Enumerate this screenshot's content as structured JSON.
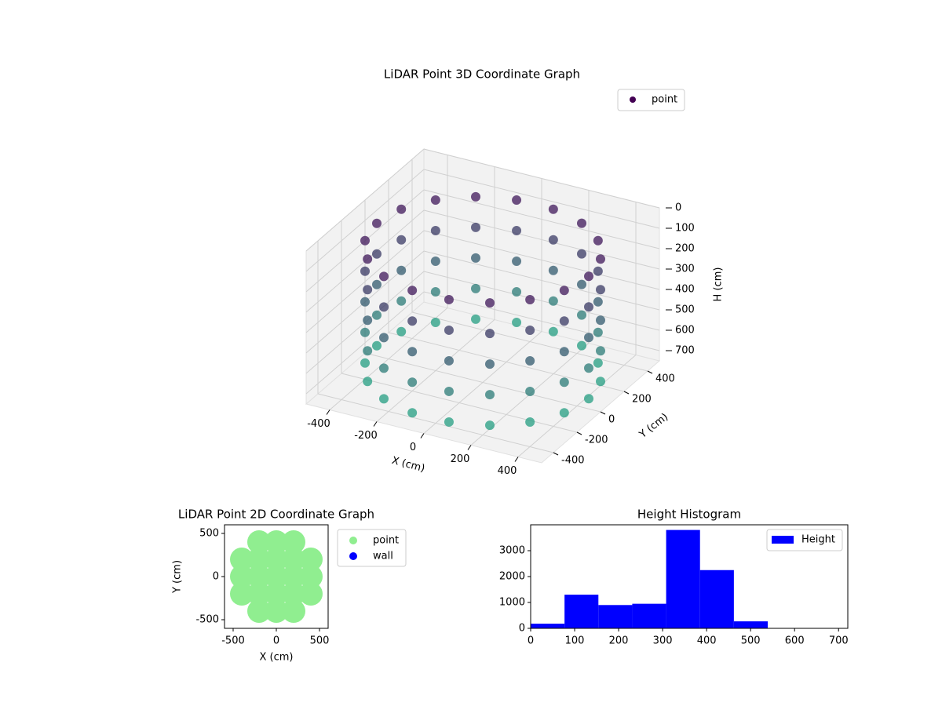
{
  "chart_data": [
    {
      "type": "scatter3d",
      "title": "LiDAR Point 3D Coordinate Graph",
      "xlabel": "X (cm)",
      "ylabel": "Y (cm)",
      "zlabel": "H (cm)",
      "xlim": [
        -500,
        500
      ],
      "ylim": [
        -500,
        500
      ],
      "zlim": [
        0,
        750
      ],
      "zinverted": true,
      "xticks": [
        -400,
        -200,
        0,
        200,
        400
      ],
      "yticks": [
        -400,
        -200,
        0,
        200,
        400
      ],
      "zticks": [
        0,
        100,
        200,
        300,
        400,
        500,
        600,
        700
      ],
      "legend": "upper right",
      "color_range": [
        "#440154",
        "#22a884"
      ],
      "series": [
        {
          "name": "point",
          "color": "#440154",
          "x": [
            450,
            423,
            345,
            225,
            78,
            -78,
            -225,
            -345,
            -423,
            -450,
            -423,
            -345,
            -225,
            -78,
            78,
            225,
            345,
            423,
            450,
            423,
            345,
            225,
            78,
            -78,
            -225,
            -345,
            -423,
            -450,
            -423,
            -345,
            -225,
            -78,
            78,
            225,
            345,
            423,
            450,
            423,
            345,
            225,
            78,
            -78,
            -225,
            -345,
            -423,
            -450,
            -423,
            -345,
            -225,
            -78,
            78,
            225,
            345,
            423,
            450,
            423,
            345,
            225,
            78,
            -78,
            -225,
            -345,
            -423,
            -450,
            -423,
            -345,
            -225,
            -78,
            78,
            225,
            345,
            423,
            450,
            423,
            345,
            225,
            78,
            -78,
            -225,
            -345,
            -423,
            -450,
            -423,
            -345,
            -225,
            -78,
            78,
            225,
            345,
            423
          ],
          "y": [
            0,
            154,
            289,
            390,
            443,
            443,
            390,
            289,
            154,
            0,
            -154,
            -289,
            -390,
            -443,
            -443,
            -390,
            -289,
            -154,
            0,
            154,
            289,
            390,
            443,
            443,
            390,
            289,
            154,
            0,
            -154,
            -289,
            -390,
            -443,
            -443,
            -390,
            -289,
            -154,
            0,
            154,
            289,
            390,
            443,
            443,
            390,
            289,
            154,
            0,
            -154,
            -289,
            -390,
            -443,
            -443,
            -390,
            -289,
            -154,
            0,
            154,
            289,
            390,
            443,
            443,
            390,
            289,
            154,
            0,
            -154,
            -289,
            -390,
            -443,
            -443,
            -390,
            -289,
            -154,
            0,
            154,
            289,
            390,
            443,
            443,
            390,
            289,
            154,
            0,
            -154,
            -289,
            -390,
            -443,
            -443,
            -390,
            -289,
            -154
          ],
          "z": [
            100,
            100,
            100,
            100,
            100,
            100,
            100,
            100,
            100,
            100,
            100,
            100,
            100,
            100,
            100,
            100,
            100,
            100,
            250,
            250,
            250,
            250,
            250,
            250,
            250,
            250,
            250,
            250,
            250,
            250,
            250,
            250,
            250,
            250,
            250,
            250,
            400,
            400,
            400,
            400,
            400,
            400,
            400,
            400,
            400,
            400,
            400,
            400,
            400,
            400,
            400,
            400,
            400,
            400,
            550,
            550,
            550,
            550,
            550,
            550,
            550,
            550,
            550,
            550,
            550,
            550,
            550,
            550,
            550,
            550,
            550,
            550,
            700,
            700,
            700,
            700,
            700,
            700,
            700,
            700,
            700,
            700,
            700,
            700,
            700,
            700,
            700,
            700,
            700,
            700
          ]
        }
      ]
    },
    {
      "type": "scatter",
      "title": "LiDAR Point 2D Coordinate Graph",
      "xlabel": "X (cm)",
      "ylabel": "Y (cm)",
      "xlim": [
        -600,
        600
      ],
      "ylim": [
        -600,
        600
      ],
      "xticks": [
        -500,
        0,
        500
      ],
      "yticks": [
        -500,
        0,
        500
      ],
      "legend": "outside right",
      "series": [
        {
          "name": "point",
          "color": "#90ee90",
          "x": [
            -400,
            -400,
            -400,
            -200,
            -200,
            -200,
            -200,
            -200,
            0,
            0,
            0,
            0,
            0,
            200,
            200,
            200,
            200,
            200,
            400,
            400,
            400
          ],
          "y": [
            -200,
            0,
            200,
            -400,
            -200,
            0,
            200,
            400,
            -400,
            -200,
            0,
            200,
            400,
            -400,
            -200,
            0,
            200,
            400,
            -200,
            0,
            200
          ]
        },
        {
          "name": "wall",
          "color": "#0000ff",
          "x": [],
          "y": []
        }
      ]
    },
    {
      "type": "histogram",
      "title": "Height Histogram",
      "xlim": [
        0,
        721
      ],
      "ylim": [
        0,
        4000
      ],
      "xticks": [
        0,
        100,
        200,
        300,
        400,
        500,
        600,
        700
      ],
      "yticks": [
        0,
        1000,
        2000,
        3000
      ],
      "legend": "upper right",
      "series": [
        {
          "name": "Height",
          "color": "#0000ff",
          "bins": [
            0,
            77,
            154,
            231,
            308,
            385,
            462,
            539,
            616,
            693
          ],
          "values": [
            180,
            1300,
            900,
            950,
            3800,
            2250,
            270,
            0,
            10
          ]
        }
      ]
    }
  ]
}
